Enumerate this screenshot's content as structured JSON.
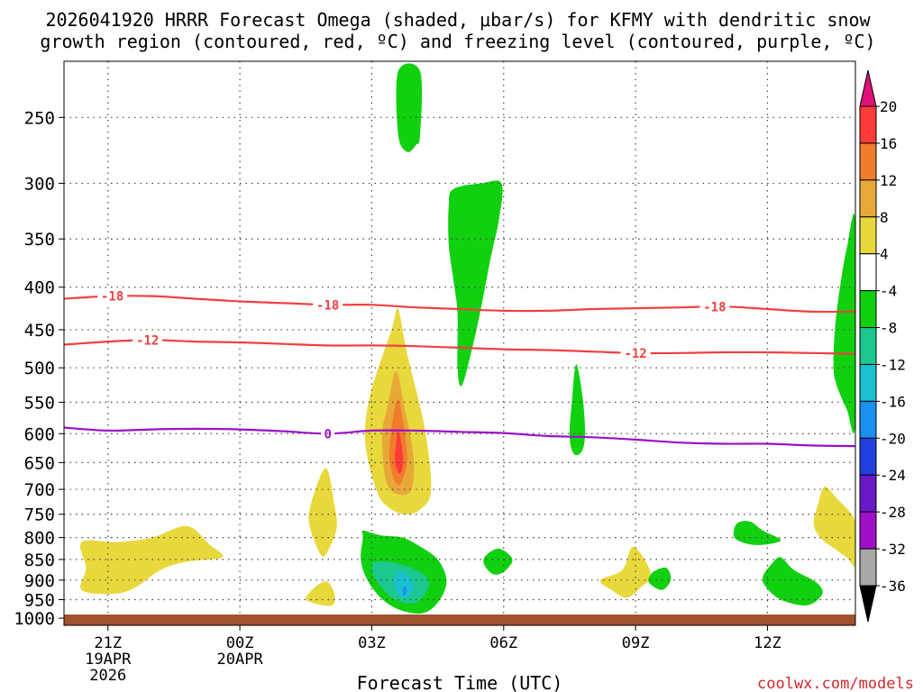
{
  "chart_data": {
    "type": "heatmap",
    "title_line1": "2026041920 HRRR Forecast Omega (shaded, μbar/s) for KFMY with dendritic snow",
    "title_line2": "growth region (contoured, red, ºC) and freezing level (contoured, purple, ºC)",
    "xlabel": "Forecast Time (UTC)",
    "credit": "coolwx.com/models",
    "x_range_hours": [
      -1,
      17
    ],
    "x_ticks": [
      {
        "hour": 0,
        "lines": [
          "21Z",
          "19APR",
          "2026"
        ]
      },
      {
        "hour": 3,
        "lines": [
          "00Z",
          "20APR"
        ]
      },
      {
        "hour": 6,
        "lines": [
          "03Z"
        ]
      },
      {
        "hour": 9,
        "lines": [
          "06Z"
        ]
      },
      {
        "hour": 12,
        "lines": [
          "09Z"
        ]
      },
      {
        "hour": 15,
        "lines": [
          "12Z"
        ]
      }
    ],
    "y_ticks_hPa": [
      250,
      300,
      350,
      400,
      450,
      500,
      550,
      600,
      650,
      700,
      750,
      800,
      850,
      900,
      950,
      1000
    ],
    "colorbar": {
      "labels": [
        "20",
        "16",
        "12",
        "8",
        "4",
        "-4",
        "-8",
        "-12",
        "-16",
        "-20",
        "-24",
        "-28",
        "-32",
        "-36"
      ],
      "bands": [
        {
          "lo": 16,
          "hi": 20,
          "color": "#ff3a3a"
        },
        {
          "lo": 12,
          "hi": 16,
          "color": "#f07c2c"
        },
        {
          "lo": 8,
          "hi": 12,
          "color": "#e8a838"
        },
        {
          "lo": 4,
          "hi": 8,
          "color": "#e8d83c"
        },
        {
          "lo": -4,
          "hi": 4,
          "color": "#ffffff"
        },
        {
          "lo": -8,
          "hi": -4,
          "color": "#10d010"
        },
        {
          "lo": -12,
          "hi": -8,
          "color": "#1cc890"
        },
        {
          "lo": -16,
          "hi": -12,
          "color": "#18c0d0"
        },
        {
          "lo": -20,
          "hi": -16,
          "color": "#1a90f0"
        },
        {
          "lo": -24,
          "hi": -20,
          "color": "#2040e0"
        },
        {
          "lo": -28,
          "hi": -24,
          "color": "#6a18c8"
        },
        {
          "lo": -32,
          "hi": -28,
          "color": "#a010c8"
        },
        {
          "lo": -36,
          "hi": -32,
          "color": "#a8a8a8"
        }
      ],
      "over_color": "#e0107a",
      "under_color": "#000000"
    },
    "contours": [
      {
        "name": "-18C isotherm",
        "label": "-18",
        "color": "#f04040",
        "label_hours": [
          0.1,
          5.0,
          13.8
        ],
        "points": [
          [
            -1,
            413
          ],
          [
            0,
            410
          ],
          [
            1,
            410
          ],
          [
            2,
            413
          ],
          [
            3,
            416
          ],
          [
            4,
            418
          ],
          [
            5,
            420
          ],
          [
            6,
            420
          ],
          [
            7,
            423
          ],
          [
            8,
            425
          ],
          [
            9,
            427
          ],
          [
            10,
            427
          ],
          [
            11,
            425
          ],
          [
            12,
            424
          ],
          [
            13,
            423
          ],
          [
            14,
            422
          ],
          [
            15,
            425
          ],
          [
            16,
            428
          ],
          [
            17,
            428
          ]
        ]
      },
      {
        "name": "-12C isotherm",
        "label": "-12",
        "color": "#f04040",
        "label_hours": [
          0.9,
          12.0
        ],
        "points": [
          [
            -1,
            469
          ],
          [
            0,
            465
          ],
          [
            1,
            463
          ],
          [
            2,
            465
          ],
          [
            3,
            466
          ],
          [
            4,
            468
          ],
          [
            5,
            470
          ],
          [
            6,
            470
          ],
          [
            7,
            471
          ],
          [
            8,
            473
          ],
          [
            9,
            475
          ],
          [
            10,
            476
          ],
          [
            11,
            478
          ],
          [
            12,
            480
          ],
          [
            13,
            480
          ],
          [
            14,
            479
          ],
          [
            15,
            479
          ],
          [
            16,
            480
          ],
          [
            17,
            481
          ]
        ]
      },
      {
        "name": "0C freezing level",
        "label": "0",
        "color": "#9c10c8",
        "label_hours": [
          5.0
        ],
        "points": [
          [
            -1,
            590
          ],
          [
            0,
            595
          ],
          [
            1,
            593
          ],
          [
            2,
            592
          ],
          [
            3,
            593
          ],
          [
            4,
            596
          ],
          [
            5,
            600
          ],
          [
            6,
            595
          ],
          [
            7,
            595
          ],
          [
            8,
            597
          ],
          [
            9,
            599
          ],
          [
            10,
            604
          ],
          [
            11,
            606
          ],
          [
            12,
            610
          ],
          [
            13,
            615
          ],
          [
            14,
            617
          ],
          [
            15,
            617
          ],
          [
            16,
            620
          ],
          [
            17,
            621
          ]
        ]
      }
    ],
    "omega_regions": [
      {
        "value": -6,
        "points": [
          [
            6.6,
            220
          ],
          [
            7.1,
            220
          ],
          [
            7.1,
            262
          ],
          [
            7.0,
            270
          ],
          [
            6.8,
            275
          ],
          [
            6.6,
            262
          ]
        ]
      },
      {
        "value": -6,
        "points": [
          [
            7.85,
            305
          ],
          [
            8.5,
            300
          ],
          [
            8.95,
            300
          ],
          [
            8.9,
            330
          ],
          [
            8.7,
            370
          ],
          [
            8.5,
            420
          ],
          [
            8.3,
            470
          ],
          [
            8.05,
            525
          ],
          [
            7.95,
            500
          ],
          [
            7.95,
            430
          ],
          [
            7.85,
            390
          ],
          [
            7.75,
            355
          ],
          [
            7.75,
            320
          ]
        ]
      },
      {
        "value": -6,
        "points": [
          [
            16.65,
            400
          ],
          [
            16.8,
            360
          ],
          [
            17,
            335
          ],
          [
            17,
            580
          ],
          [
            16.8,
            560
          ],
          [
            16.55,
            520
          ],
          [
            16.5,
            490
          ],
          [
            16.55,
            440
          ]
        ]
      },
      {
        "value": -6,
        "points": [
          [
            10.65,
            495
          ],
          [
            10.8,
            545
          ],
          [
            10.85,
            600
          ],
          [
            10.78,
            630
          ],
          [
            10.6,
            635
          ],
          [
            10.5,
            605
          ],
          [
            10.55,
            550
          ]
        ]
      },
      {
        "value": -6,
        "points": [
          [
            5.8,
            785
          ],
          [
            6.2,
            795
          ],
          [
            6.7,
            800
          ],
          [
            7.1,
            820
          ],
          [
            7.5,
            850
          ],
          [
            7.7,
            900
          ],
          [
            7.55,
            950
          ],
          [
            7.2,
            985
          ],
          [
            6.7,
            980
          ],
          [
            6.25,
            950
          ],
          [
            5.9,
            900
          ],
          [
            5.75,
            850
          ],
          [
            5.8,
            800
          ]
        ]
      },
      {
        "value": -10,
        "points": [
          [
            6.1,
            855
          ],
          [
            6.6,
            860
          ],
          [
            7.1,
            880
          ],
          [
            7.3,
            910
          ],
          [
            7.1,
            950
          ],
          [
            6.8,
            960
          ],
          [
            6.4,
            940
          ],
          [
            6.1,
            900
          ],
          [
            6.0,
            870
          ]
        ]
      },
      {
        "value": -14,
        "points": [
          [
            6.6,
            880
          ],
          [
            6.85,
            890
          ],
          [
            6.95,
            920
          ],
          [
            6.8,
            945
          ],
          [
            6.6,
            935
          ],
          [
            6.5,
            905
          ]
        ]
      },
      {
        "value": -18,
        "points": [
          [
            6.75,
            915
          ],
          [
            6.8,
            925
          ],
          [
            6.75,
            940
          ],
          [
            6.7,
            928
          ]
        ]
      },
      {
        "value": -6,
        "points": [
          [
            8.6,
            840
          ],
          [
            8.9,
            825
          ],
          [
            9.2,
            850
          ],
          [
            9.0,
            880
          ],
          [
            8.75,
            885
          ],
          [
            8.55,
            860
          ]
        ]
      },
      {
        "value": -6,
        "points": [
          [
            12.4,
            880
          ],
          [
            12.7,
            870
          ],
          [
            12.8,
            900
          ],
          [
            12.6,
            925
          ],
          [
            12.3,
            905
          ]
        ]
      },
      {
        "value": -6,
        "points": [
          [
            14.3,
            770
          ],
          [
            14.6,
            765
          ],
          [
            14.9,
            785
          ],
          [
            15.3,
            805
          ],
          [
            15.0,
            815
          ],
          [
            14.6,
            815
          ],
          [
            14.25,
            800
          ]
        ]
      },
      {
        "value": -6,
        "points": [
          [
            15.1,
            860
          ],
          [
            15.3,
            845
          ],
          [
            15.6,
            875
          ],
          [
            16.1,
            905
          ],
          [
            16.25,
            935
          ],
          [
            15.9,
            965
          ],
          [
            15.3,
            950
          ],
          [
            14.95,
            915
          ],
          [
            14.9,
            890
          ]
        ]
      }
    ],
    "omega_positive": [
      {
        "value": 5,
        "points": [
          [
            6.0,
            530
          ],
          [
            6.45,
            450
          ],
          [
            6.6,
            425
          ],
          [
            6.8,
            480
          ],
          [
            7.2,
            590
          ],
          [
            7.35,
            700
          ],
          [
            7.1,
            740
          ],
          [
            6.7,
            750
          ],
          [
            6.3,
            730
          ],
          [
            6.1,
            700
          ],
          [
            5.9,
            640
          ],
          [
            5.85,
            590
          ]
        ]
      },
      {
        "value": 9,
        "points": [
          [
            6.35,
            560
          ],
          [
            6.55,
            505
          ],
          [
            6.75,
            560
          ],
          [
            6.95,
            640
          ],
          [
            6.9,
            700
          ],
          [
            6.6,
            710
          ],
          [
            6.35,
            690
          ],
          [
            6.25,
            640
          ],
          [
            6.25,
            590
          ]
        ]
      },
      {
        "value": 13,
        "points": [
          [
            6.45,
            590
          ],
          [
            6.6,
            545
          ],
          [
            6.75,
            600
          ],
          [
            6.8,
            650
          ],
          [
            6.65,
            690
          ],
          [
            6.5,
            680
          ],
          [
            6.4,
            640
          ]
        ]
      },
      {
        "value": 18,
        "points": [
          [
            6.55,
            620
          ],
          [
            6.6,
            595
          ],
          [
            6.7,
            630
          ],
          [
            6.7,
            660
          ],
          [
            6.62,
            670
          ],
          [
            6.53,
            650
          ]
        ]
      },
      {
        "value": 5,
        "points": [
          [
            -0.6,
            810
          ],
          [
            0.2,
            810
          ],
          [
            1.0,
            800
          ],
          [
            1.8,
            775
          ],
          [
            2.3,
            815
          ],
          [
            2.6,
            845
          ],
          [
            1.8,
            855
          ],
          [
            1.2,
            875
          ],
          [
            0.6,
            920
          ],
          [
            0.1,
            935
          ],
          [
            -0.6,
            925
          ],
          [
            -0.5,
            870
          ]
        ]
      },
      {
        "value": 5,
        "points": [
          [
            4.6,
            735
          ],
          [
            4.95,
            660
          ],
          [
            5.15,
            730
          ],
          [
            5.2,
            780
          ],
          [
            5.0,
            830
          ],
          [
            4.85,
            840
          ],
          [
            4.6,
            780
          ]
        ]
      },
      {
        "value": 5,
        "points": [
          [
            4.5,
            945
          ],
          [
            4.8,
            910
          ],
          [
            5.0,
            905
          ],
          [
            5.15,
            935
          ],
          [
            5.1,
            965
          ],
          [
            4.7,
            960
          ]
        ]
      },
      {
        "value": 5,
        "points": [
          [
            11.2,
            900
          ],
          [
            11.7,
            875
          ],
          [
            11.95,
            820
          ],
          [
            12.35,
            885
          ],
          [
            12.1,
            920
          ],
          [
            11.8,
            945
          ],
          [
            11.45,
            925
          ]
        ]
      },
      {
        "value": 5,
        "points": [
          [
            16.15,
            730
          ],
          [
            16.3,
            695
          ],
          [
            16.6,
            720
          ],
          [
            16.95,
            755
          ],
          [
            17,
            790
          ],
          [
            17,
            865
          ],
          [
            16.8,
            845
          ],
          [
            16.45,
            820
          ],
          [
            16.2,
            800
          ],
          [
            16.05,
            770
          ]
        ]
      }
    ]
  }
}
